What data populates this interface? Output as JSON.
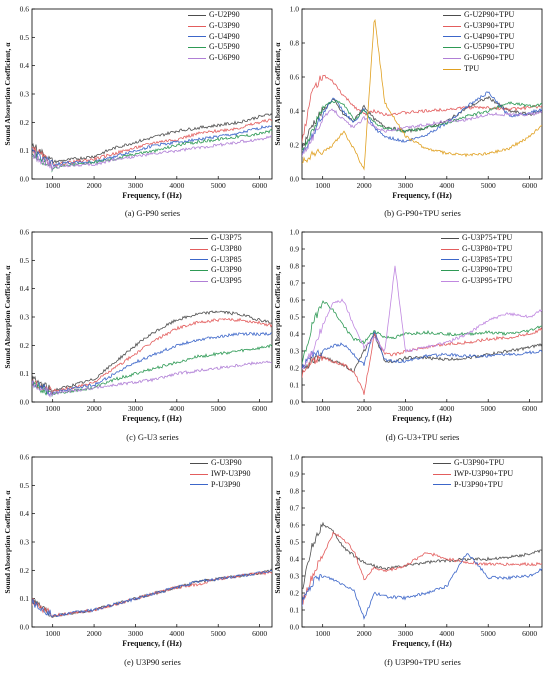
{
  "figure": {
    "panels": [
      {
        "id": "a",
        "caption": "(a)  G-P90 series",
        "xlabel": "Frequency, f (Hz)",
        "ylabel": "Sound Absorption Coefficient, α",
        "yticks": [
          "0.0",
          "0.1",
          "0.2",
          "0.3",
          "0.4",
          "0.5",
          "0.6"
        ],
        "xticks": [
          "1000",
          "2000",
          "3000",
          "4000",
          "5000",
          "6000"
        ]
      },
      {
        "id": "b",
        "caption": "(b)  G-P90+TPU series",
        "xlabel": "Frequency, f (Hz)",
        "ylabel": "Sound Absorption Coefficient, α",
        "yticks": [
          "0.0",
          "0.2",
          "0.4",
          "0.6",
          "0.8",
          "1.0"
        ],
        "xticks": [
          "1000",
          "2000",
          "3000",
          "4000",
          "5000",
          "6000"
        ]
      },
      {
        "id": "c",
        "caption": "(c)  G-U3 series",
        "xlabel": "Frequency, f (Hz)",
        "ylabel": "Sound Absorption Coefficient, α",
        "yticks": [
          "0.0",
          "0.1",
          "0.2",
          "0.3",
          "0.4",
          "0.5",
          "0.6"
        ],
        "xticks": [
          "1000",
          "2000",
          "3000",
          "4000",
          "5000",
          "6000"
        ]
      },
      {
        "id": "d",
        "caption": "(d)  G-U3+TPU series",
        "xlabel": "Frequency, f (Hz)",
        "ylabel": "Sound Absorption Coefficient, α",
        "yticks": [
          "0.0",
          "0.1",
          "0.2",
          "0.3",
          "0.4",
          "0.5",
          "0.6",
          "0.7",
          "0.8",
          "0.9",
          "1.0"
        ],
        "xticks": [
          "1000",
          "2000",
          "3000",
          "4000",
          "5000",
          "6000"
        ]
      },
      {
        "id": "e",
        "caption": "(e)  U3P90 series",
        "xlabel": "Frequency, f (Hz)",
        "ylabel": "Sound Absorption Coefficient, α",
        "yticks": [
          "0.0",
          "0.1",
          "0.2",
          "0.3",
          "0.4",
          "0.5",
          "0.6"
        ],
        "xticks": [
          "1000",
          "2000",
          "3000",
          "4000",
          "5000",
          "6000"
        ]
      },
      {
        "id": "f",
        "caption": "(f)  U3P90+TPU series",
        "xlabel": "Frequency, f (Hz)",
        "ylabel": "Sound Absorption Coefficient, α",
        "yticks": [
          "0.0",
          "0.1",
          "0.2",
          "0.3",
          "0.4",
          "0.5",
          "0.6",
          "0.7",
          "0.8",
          "0.9",
          "1.0"
        ],
        "xticks": [
          "1000",
          "2000",
          "3000",
          "4000",
          "5000",
          "6000"
        ]
      }
    ]
  },
  "chart_data": [
    {
      "panel": "a",
      "type": "line",
      "title": "",
      "caption": "(a)  G-P90 series",
      "xlabel": "Frequency, f (Hz)",
      "ylabel": "Sound Absorption Coefficient, α",
      "xlim": [
        500,
        6300
      ],
      "ylim": [
        0,
        0.6
      ],
      "grid": false,
      "legend_position": "top-right",
      "x": [
        500,
        1000,
        1500,
        2000,
        2500,
        3000,
        3500,
        4000,
        4500,
        5000,
        5500,
        6000,
        6300
      ],
      "series": [
        {
          "name": "G-U2P90",
          "color": "#4d4d4d",
          "values": [
            0.12,
            0.06,
            0.07,
            0.08,
            0.11,
            0.13,
            0.15,
            0.17,
            0.18,
            0.19,
            0.2,
            0.22,
            0.23
          ]
        },
        {
          "name": "G-U3P90",
          "color": "#e35d5d",
          "values": [
            0.11,
            0.05,
            0.06,
            0.07,
            0.09,
            0.11,
            0.13,
            0.14,
            0.16,
            0.17,
            0.18,
            0.2,
            0.21
          ]
        },
        {
          "name": "G-U4P90",
          "color": "#3c66c9",
          "values": [
            0.1,
            0.05,
            0.06,
            0.06,
            0.08,
            0.1,
            0.12,
            0.13,
            0.14,
            0.15,
            0.16,
            0.18,
            0.19
          ]
        },
        {
          "name": "G-U5P90",
          "color": "#2e9a55",
          "values": [
            0.09,
            0.04,
            0.05,
            0.06,
            0.07,
            0.09,
            0.1,
            0.12,
            0.13,
            0.14,
            0.15,
            0.16,
            0.17
          ]
        },
        {
          "name": "G-U6P90",
          "color": "#b07fd6",
          "values": [
            0.09,
            0.04,
            0.05,
            0.05,
            0.07,
            0.08,
            0.09,
            0.1,
            0.11,
            0.12,
            0.13,
            0.14,
            0.15
          ]
        }
      ]
    },
    {
      "panel": "b",
      "type": "line",
      "title": "",
      "caption": "(b)  G-P90+TPU series",
      "xlabel": "Frequency, f (Hz)",
      "ylabel": "Sound Absorption Coefficient, α",
      "xlim": [
        500,
        6300
      ],
      "ylim": [
        0,
        1.0
      ],
      "grid": false,
      "legend_position": "top-right",
      "x": [
        500,
        750,
        1000,
        1250,
        1500,
        1750,
        2000,
        2250,
        2500,
        3000,
        3500,
        4000,
        4500,
        5000,
        5500,
        6000,
        6300
      ],
      "series": [
        {
          "name": "G-U2P90+TPU",
          "color": "#4d4d4d",
          "values": [
            0.18,
            0.32,
            0.4,
            0.47,
            0.38,
            0.34,
            0.43,
            0.35,
            0.31,
            0.28,
            0.3,
            0.34,
            0.42,
            0.48,
            0.4,
            0.38,
            0.4
          ]
        },
        {
          "name": "G-U3P90+TPU",
          "color": "#e35d5d",
          "values": [
            0.22,
            0.52,
            0.61,
            0.57,
            0.49,
            0.43,
            0.38,
            0.4,
            0.38,
            0.39,
            0.4,
            0.41,
            0.42,
            0.42,
            0.41,
            0.42,
            0.43
          ]
        },
        {
          "name": "G-U4P90+TPU",
          "color": "#3c66c9",
          "values": [
            0.14,
            0.26,
            0.38,
            0.48,
            0.4,
            0.33,
            0.41,
            0.3,
            0.25,
            0.22,
            0.26,
            0.33,
            0.43,
            0.51,
            0.37,
            0.39,
            0.41
          ]
        },
        {
          "name": "G-U5P90+TPU",
          "color": "#2e9a55",
          "values": [
            0.16,
            0.28,
            0.42,
            0.46,
            0.44,
            0.35,
            0.4,
            0.33,
            0.3,
            0.28,
            0.3,
            0.33,
            0.37,
            0.4,
            0.45,
            0.43,
            0.44
          ]
        },
        {
          "name": "G-U6P90+TPU",
          "color": "#b07fd6",
          "values": [
            0.15,
            0.24,
            0.36,
            0.41,
            0.35,
            0.3,
            0.36,
            0.31,
            0.28,
            0.3,
            0.32,
            0.34,
            0.35,
            0.38,
            0.38,
            0.38,
            0.39
          ]
        },
        {
          "name": "TPU",
          "color": "#e0a020",
          "values": [
            0.1,
            0.14,
            0.16,
            0.2,
            0.28,
            0.18,
            0.05,
            0.96,
            0.45,
            0.25,
            0.18,
            0.15,
            0.14,
            0.15,
            0.18,
            0.25,
            0.32
          ]
        }
      ]
    },
    {
      "panel": "c",
      "type": "line",
      "title": "",
      "caption": "(c)  G-U3 series",
      "xlabel": "Frequency, f (Hz)",
      "ylabel": "Sound Absorption Coefficient, α",
      "xlim": [
        500,
        6300
      ],
      "ylim": [
        0,
        0.6
      ],
      "grid": false,
      "legend_position": "top-right",
      "x": [
        500,
        1000,
        1500,
        2000,
        2500,
        3000,
        3500,
        4000,
        4500,
        5000,
        5500,
        6000,
        6300
      ],
      "series": [
        {
          "name": "G-U3P75",
          "color": "#4d4d4d",
          "values": [
            0.08,
            0.04,
            0.06,
            0.08,
            0.14,
            0.2,
            0.25,
            0.29,
            0.31,
            0.32,
            0.31,
            0.29,
            0.28
          ]
        },
        {
          "name": "G-U3P80",
          "color": "#e35d5d",
          "values": [
            0.07,
            0.04,
            0.05,
            0.07,
            0.12,
            0.17,
            0.22,
            0.26,
            0.28,
            0.29,
            0.29,
            0.28,
            0.27
          ]
        },
        {
          "name": "G-U3P85",
          "color": "#3c66c9",
          "values": [
            0.07,
            0.03,
            0.05,
            0.06,
            0.1,
            0.14,
            0.17,
            0.2,
            0.22,
            0.23,
            0.24,
            0.24,
            0.24
          ]
        },
        {
          "name": "G-U3P90",
          "color": "#2e9a55",
          "values": [
            0.06,
            0.03,
            0.04,
            0.05,
            0.08,
            0.1,
            0.12,
            0.14,
            0.16,
            0.17,
            0.18,
            0.19,
            0.2
          ]
        },
        {
          "name": "G-U3P95",
          "color": "#b07fd6",
          "values": [
            0.06,
            0.03,
            0.04,
            0.05,
            0.06,
            0.07,
            0.08,
            0.1,
            0.11,
            0.12,
            0.13,
            0.14,
            0.14
          ]
        }
      ]
    },
    {
      "panel": "d",
      "type": "line",
      "title": "",
      "caption": "(d)  G-U3+TPU series",
      "xlabel": "Frequency, f (Hz)",
      "ylabel": "Sound Absorption Coefficient, α",
      "xlim": [
        500,
        6300
      ],
      "ylim": [
        0,
        1.0
      ],
      "grid": false,
      "legend_position": "top-right",
      "x": [
        500,
        750,
        1000,
        1250,
        1500,
        1750,
        2000,
        2250,
        2500,
        2750,
        3000,
        3500,
        4000,
        4500,
        5000,
        5500,
        6000,
        6300
      ],
      "series": [
        {
          "name": "G-U3P75+TPU",
          "color": "#4d4d4d",
          "values": [
            0.18,
            0.25,
            0.27,
            0.24,
            0.22,
            0.18,
            0.3,
            0.4,
            0.24,
            0.24,
            0.26,
            0.26,
            0.25,
            0.26,
            0.28,
            0.3,
            0.32,
            0.34
          ]
        },
        {
          "name": "G-U3P80+TPU",
          "color": "#e35d5d",
          "values": [
            0.16,
            0.24,
            0.26,
            0.24,
            0.22,
            0.18,
            0.05,
            0.4,
            0.28,
            0.28,
            0.3,
            0.32,
            0.34,
            0.35,
            0.37,
            0.38,
            0.4,
            0.43
          ]
        },
        {
          "name": "G-U3P85+TPU",
          "color": "#3c66c9",
          "values": [
            0.2,
            0.28,
            0.3,
            0.33,
            0.34,
            0.28,
            0.22,
            0.42,
            0.25,
            0.24,
            0.24,
            0.27,
            0.28,
            0.27,
            0.27,
            0.28,
            0.29,
            0.3
          ]
        },
        {
          "name": "G-U3P90+TPU",
          "color": "#2e9a55",
          "values": [
            0.22,
            0.45,
            0.6,
            0.54,
            0.45,
            0.37,
            0.35,
            0.42,
            0.38,
            0.38,
            0.4,
            0.41,
            0.4,
            0.4,
            0.41,
            0.4,
            0.42,
            0.45
          ]
        },
        {
          "name": "G-U3P95+TPU",
          "color": "#c088e0",
          "values": [
            0.18,
            0.3,
            0.45,
            0.58,
            0.6,
            0.45,
            0.32,
            0.38,
            0.3,
            0.8,
            0.3,
            0.32,
            0.35,
            0.4,
            0.48,
            0.52,
            0.5,
            0.54
          ]
        }
      ]
    },
    {
      "panel": "e",
      "type": "line",
      "title": "",
      "caption": "(e)  U3P90 series",
      "xlabel": "Frequency, f (Hz)",
      "ylabel": "Sound Absorption Coefficient, α",
      "xlim": [
        500,
        6300
      ],
      "ylim": [
        0,
        0.6
      ],
      "grid": false,
      "legend_position": "top-right",
      "x": [
        500,
        1000,
        1500,
        2000,
        2500,
        3000,
        3500,
        4000,
        4500,
        5000,
        5500,
        6000,
        6300
      ],
      "series": [
        {
          "name": "G-U3P90",
          "color": "#4d4d4d",
          "values": [
            0.1,
            0.04,
            0.05,
            0.06,
            0.08,
            0.1,
            0.12,
            0.14,
            0.16,
            0.17,
            0.18,
            0.19,
            0.2
          ]
        },
        {
          "name": "IWP-U3P90",
          "color": "#e35d5d",
          "values": [
            0.09,
            0.04,
            0.05,
            0.06,
            0.08,
            0.1,
            0.12,
            0.14,
            0.15,
            0.17,
            0.18,
            0.19,
            0.19
          ]
        },
        {
          "name": "P-U3P90",
          "color": "#3c66c9",
          "values": [
            0.09,
            0.04,
            0.05,
            0.06,
            0.08,
            0.1,
            0.12,
            0.14,
            0.16,
            0.17,
            0.18,
            0.19,
            0.2
          ]
        }
      ]
    },
    {
      "panel": "f",
      "type": "line",
      "title": "",
      "caption": "(f)  U3P90+TPU series",
      "xlabel": "Frequency, f (Hz)",
      "ylabel": "Sound Absorption Coefficient, α",
      "xlim": [
        500,
        6300
      ],
      "ylim": [
        0,
        1.0
      ],
      "grid": false,
      "legend_position": "top-right",
      "x": [
        500,
        750,
        1000,
        1250,
        1500,
        1750,
        2000,
        2250,
        2500,
        3000,
        3500,
        4000,
        4500,
        5000,
        5500,
        6000,
        6300
      ],
      "series": [
        {
          "name": "G-U3P90+TPU",
          "color": "#4d4d4d",
          "values": [
            0.22,
            0.48,
            0.61,
            0.56,
            0.47,
            0.42,
            0.38,
            0.36,
            0.34,
            0.36,
            0.38,
            0.39,
            0.4,
            0.4,
            0.41,
            0.43,
            0.45
          ]
        },
        {
          "name": "IWP-U3P90+TPU",
          "color": "#e35d5d",
          "values": [
            0.14,
            0.3,
            0.42,
            0.55,
            0.52,
            0.45,
            0.28,
            0.35,
            0.33,
            0.36,
            0.44,
            0.4,
            0.38,
            0.37,
            0.37,
            0.37,
            0.37
          ]
        },
        {
          "name": "P-U3P90+TPU",
          "color": "#3c66c9",
          "values": [
            0.14,
            0.26,
            0.3,
            0.28,
            0.25,
            0.22,
            0.05,
            0.2,
            0.18,
            0.17,
            0.2,
            0.24,
            0.44,
            0.29,
            0.29,
            0.3,
            0.34
          ]
        }
      ]
    }
  ]
}
